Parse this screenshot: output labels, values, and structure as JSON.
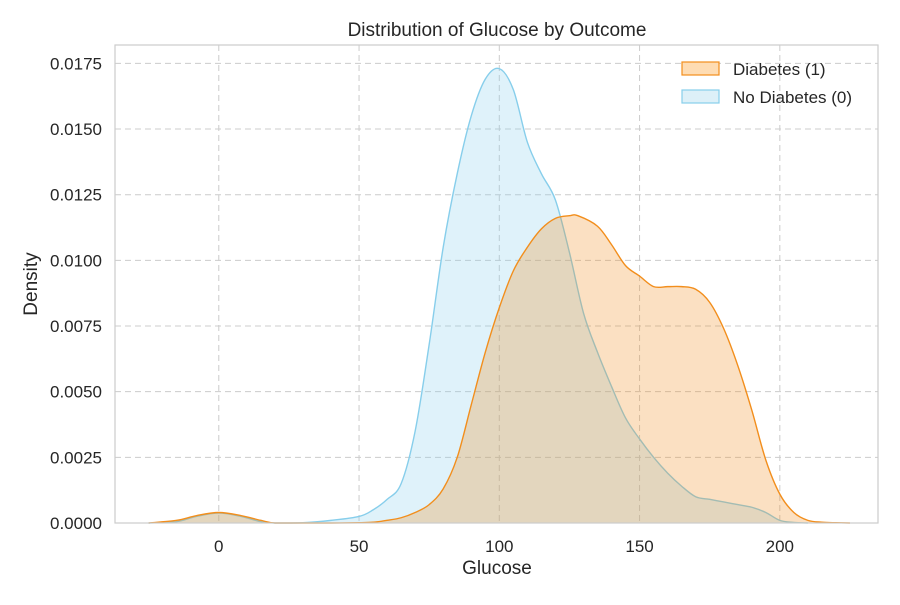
{
  "chart_data": {
    "type": "area",
    "title": "Distribution of Glucose by Outcome",
    "xlabel": "Glucose",
    "ylabel": "Density",
    "xlim": [
      -37,
      235
    ],
    "ylim": [
      0,
      0.0182
    ],
    "xticks": [
      0,
      50,
      100,
      150,
      200
    ],
    "xtick_labels": [
      "0",
      "50",
      "100",
      "150",
      "200"
    ],
    "yticks": [
      0,
      0.0025,
      0.005,
      0.0075,
      0.01,
      0.0125,
      0.015,
      0.0175
    ],
    "ytick_labels": [
      "0.0000",
      "0.0025",
      "0.0050",
      "0.0075",
      "0.0100",
      "0.0125",
      "0.0150",
      "0.0175"
    ],
    "grid": true,
    "legend_position": "top-right",
    "series": [
      {
        "name": "No Diabetes (0)",
        "color": "#87ceeb",
        "fill": "#ddf0f8",
        "x": [
          -25,
          -15,
          -8,
          0,
          8,
          15,
          20,
          30,
          40,
          50,
          55,
          60,
          65,
          70,
          75,
          80,
          85,
          90,
          95,
          100,
          105,
          110,
          115,
          120,
          125,
          130,
          135,
          140,
          145,
          150,
          155,
          160,
          165,
          170,
          175,
          180,
          185,
          190,
          195,
          200,
          205,
          210
        ],
        "y": [
          0,
          5e-05,
          0.00025,
          0.00038,
          0.00025,
          5e-05,
          0,
          1e-05,
          0.0001,
          0.00025,
          0.0005,
          0.0009,
          0.0015,
          0.0035,
          0.0068,
          0.0105,
          0.0133,
          0.0155,
          0.0169,
          0.0173,
          0.0165,
          0.0145,
          0.0133,
          0.0123,
          0.0103,
          0.008,
          0.0065,
          0.0052,
          0.004,
          0.0032,
          0.0025,
          0.0019,
          0.0014,
          0.001,
          0.0009,
          0.0008,
          0.0007,
          0.0006,
          0.0004,
          0.0001,
          2e-05,
          0
        ]
      },
      {
        "name": "Diabetes (1)",
        "color": "#f28e1c",
        "fill": "#fedcb3",
        "x": [
          -25,
          -15,
          -8,
          0,
          8,
          15,
          20,
          30,
          40,
          50,
          55,
          60,
          65,
          70,
          75,
          80,
          85,
          90,
          95,
          100,
          105,
          110,
          115,
          120,
          125,
          128,
          135,
          140,
          145,
          150,
          155,
          160,
          165,
          170,
          175,
          180,
          185,
          190,
          195,
          200,
          205,
          210,
          215,
          220,
          225
        ],
        "y": [
          0,
          0.0001,
          0.00028,
          0.0004,
          0.00028,
          0.0001,
          0,
          0,
          0,
          1e-05,
          3e-05,
          0.0001,
          0.0002,
          0.0004,
          0.0007,
          0.0013,
          0.0025,
          0.0045,
          0.0065,
          0.0082,
          0.0096,
          0.0105,
          0.0112,
          0.0116,
          0.0117,
          0.0117,
          0.0113,
          0.0106,
          0.0098,
          0.0094,
          0.009,
          0.009,
          0.009,
          0.0089,
          0.0084,
          0.0074,
          0.006,
          0.0043,
          0.0024,
          0.0011,
          0.0004,
          0.0001,
          3e-05,
          1e-05,
          0
        ]
      }
    ],
    "legend_order": [
      "Diabetes (1)",
      "No Diabetes (0)"
    ]
  }
}
